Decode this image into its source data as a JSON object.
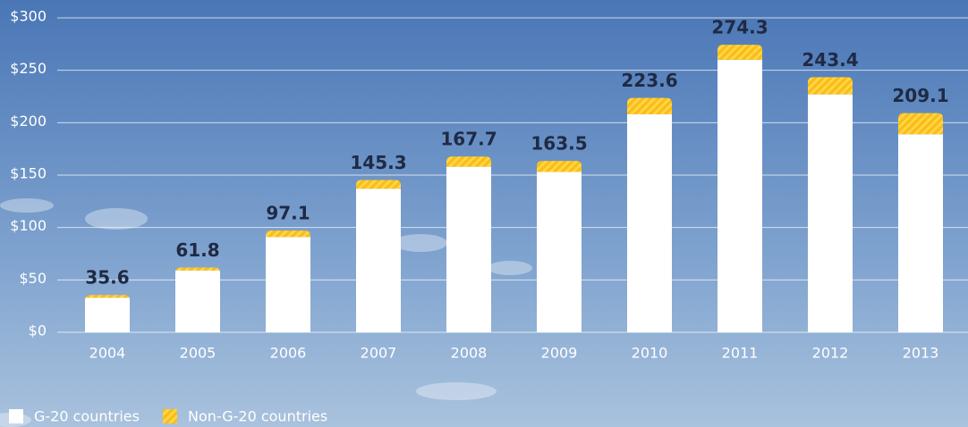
{
  "chart_data": {
    "type": "stacked-bar",
    "categories": [
      "2004",
      "2005",
      "2006",
      "2007",
      "2008",
      "2009",
      "2010",
      "2011",
      "2012",
      "2013"
    ],
    "series": [
      {
        "name": "G-20 countries",
        "color": "#ffffff",
        "values": [
          33,
          59,
          91,
          137,
          158,
          153,
          208,
          260,
          227,
          189
        ]
      },
      {
        "name": "Non-G-20 countries",
        "color": "#fbbd18",
        "values": [
          2.6,
          2.8,
          6.1,
          8.3,
          9.7,
          10.5,
          15.6,
          14.3,
          16.4,
          20.1
        ]
      }
    ],
    "totals": [
      35.6,
      61.8,
      97.1,
      145.3,
      167.7,
      163.5,
      223.6,
      274.3,
      243.4,
      209.1
    ],
    "ylim": [
      0,
      300
    ],
    "yticks": [
      {
        "value": 0,
        "label": "$0"
      },
      {
        "value": 50,
        "label": "$50"
      },
      {
        "value": 100,
        "label": "$100"
      },
      {
        "value": 150,
        "label": "$150"
      },
      {
        "value": 200,
        "label": "$200"
      },
      {
        "value": 250,
        "label": "$250"
      },
      {
        "value": 300,
        "label": "$300"
      }
    ],
    "grid": true,
    "legend": "bottom-left"
  }
}
